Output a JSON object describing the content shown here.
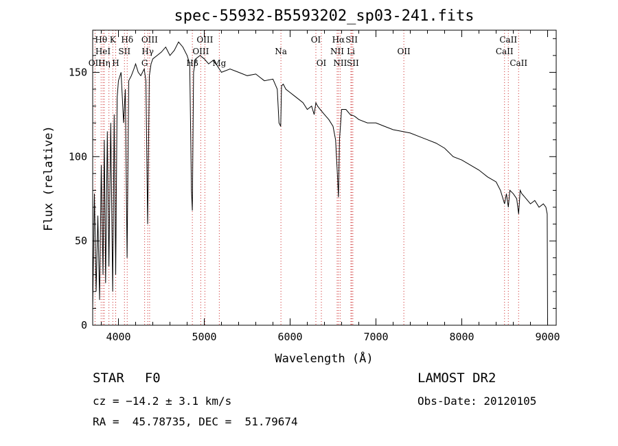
{
  "chart_data": {
    "type": "line",
    "title": "spec-55932-B5593202_sp03-241.fits",
    "xlabel": "Wavelength (Å)",
    "ylabel": "Flux (relative)",
    "xlim": [
      3700,
      9100
    ],
    "ylim": [
      0,
      175
    ],
    "xticks": [
      4000,
      5000,
      6000,
      7000,
      8000,
      9000
    ],
    "yticks": [
      0,
      50,
      100,
      150
    ],
    "grid": false,
    "series": [
      {
        "x": [
          3700,
          3720,
          3740,
          3760,
          3780,
          3800,
          3820,
          3835,
          3850,
          3870,
          3889,
          3910,
          3933,
          3950,
          3968,
          3985,
          4000,
          4030,
          4060,
          4080,
          4101,
          4120,
          4150,
          4180,
          4200,
          4230,
          4260,
          4300,
          4320,
          4340,
          4360,
          4380,
          4400,
          4450,
          4500,
          4550,
          4600,
          4650,
          4700,
          4750,
          4800,
          4830,
          4850,
          4861,
          4875,
          4900,
          4950,
          5000,
          5050,
          5100,
          5150,
          5200,
          5300,
          5400,
          5500,
          5600,
          5700,
          5800,
          5850,
          5870,
          5890,
          5900,
          5920,
          5950,
          6000,
          6050,
          6100,
          6150,
          6200,
          6250,
          6280,
          6300,
          6320,
          6350,
          6400,
          6450,
          6500,
          6530,
          6550,
          6563,
          6575,
          6600,
          6650,
          6700,
          6750,
          6800,
          6900,
          7000,
          7100,
          7200,
          7300,
          7400,
          7500,
          7600,
          7700,
          7800,
          7900,
          8000,
          8100,
          8200,
          8300,
          8400,
          8450,
          8498,
          8520,
          8542,
          8560,
          8600,
          8640,
          8662,
          8680,
          8700,
          8750,
          8800,
          8850,
          8900,
          8950,
          8980,
          8995,
          9000
        ],
        "values": [
          10,
          78,
          20,
          65,
          15,
          95,
          30,
          110,
          25,
          115,
          35,
          120,
          20,
          125,
          30,
          135,
          145,
          150,
          120,
          140,
          40,
          145,
          148,
          152,
          155,
          150,
          148,
          152,
          145,
          60,
          148,
          155,
          158,
          160,
          162,
          165,
          160,
          163,
          168,
          165,
          160,
          155,
          80,
          68,
          150,
          158,
          160,
          158,
          155,
          157,
          154,
          150,
          152,
          150,
          148,
          149,
          145,
          146,
          140,
          120,
          118,
          142,
          143,
          140,
          138,
          136,
          134,
          132,
          128,
          130,
          125,
          132,
          130,
          128,
          125,
          122,
          118,
          110,
          90,
          76,
          110,
          128,
          128,
          125,
          124,
          122,
          120,
          120,
          118,
          116,
          115,
          114,
          112,
          110,
          108,
          105,
          100,
          98,
          95,
          92,
          88,
          85,
          80,
          72,
          78,
          70,
          80,
          78,
          75,
          66,
          80,
          78,
          75,
          72,
          74,
          70,
          72,
          70,
          66,
          0
        ]
      }
    ],
    "line_annotations": [
      {
        "label": "Hθ",
        "x": 3798,
        "row": 0
      },
      {
        "label": "K",
        "x": 3934,
        "row": 0
      },
      {
        "label": "Hδ",
        "x": 4102,
        "row": 0
      },
      {
        "label": "OIII",
        "x": 4363,
        "row": 0
      },
      {
        "label": "OIII",
        "x": 5007,
        "row": 0
      },
      {
        "label": "OI",
        "x": 6300,
        "row": 0
      },
      {
        "label": "Hα",
        "x": 6563,
        "row": 0
      },
      {
        "label": "SII",
        "x": 6717,
        "row": 0
      },
      {
        "label": "CaII",
        "x": 8542,
        "row": 0
      },
      {
        "label": "HeI",
        "x": 3820,
        "row": 1
      },
      {
        "label": "SII",
        "x": 4070,
        "row": 1
      },
      {
        "label": "Hγ",
        "x": 4341,
        "row": 1
      },
      {
        "label": "OIII",
        "x": 4959,
        "row": 1
      },
      {
        "label": "Na",
        "x": 5893,
        "row": 1
      },
      {
        "label": "NII",
        "x": 6548,
        "row": 1
      },
      {
        "label": "Li",
        "x": 6708,
        "row": 1
      },
      {
        "label": "OII",
        "x": 7325,
        "row": 1
      },
      {
        "label": "CaII",
        "x": 8498,
        "row": 1
      },
      {
        "label": "OII",
        "x": 3727,
        "row": 2
      },
      {
        "label": "Hη",
        "x": 3835,
        "row": 2
      },
      {
        "label": "H",
        "x": 3968,
        "row": 2
      },
      {
        "label": "G",
        "x": 4305,
        "row": 2
      },
      {
        "label": "Hβ",
        "x": 4861,
        "row": 2
      },
      {
        "label": "Mg",
        "x": 5175,
        "row": 2
      },
      {
        "label": "OI",
        "x": 6364,
        "row": 2
      },
      {
        "label": "NII",
        "x": 6583,
        "row": 2
      },
      {
        "label": "SII",
        "x": 6731,
        "row": 2
      },
      {
        "label": "CaII",
        "x": 8662,
        "row": 2
      }
    ],
    "line_markers_x": [
      3727,
      3798,
      3820,
      3835,
      3889,
      3934,
      3968,
      4070,
      4102,
      4305,
      4341,
      4363,
      4861,
      4959,
      5007,
      5175,
      5893,
      6300,
      6364,
      6548,
      6563,
      6583,
      6708,
      6717,
      6731,
      7325,
      8498,
      8542,
      8662
    ]
  },
  "info": {
    "class_label": "STAR",
    "subclass": "F0",
    "survey": "LAMOST DR2",
    "cz": "cz = −14.2 ± 3.1 km/s",
    "obs_date": "Obs-Date: 20120105",
    "coords": "RA =  45.78735, DEC =  51.79674"
  }
}
